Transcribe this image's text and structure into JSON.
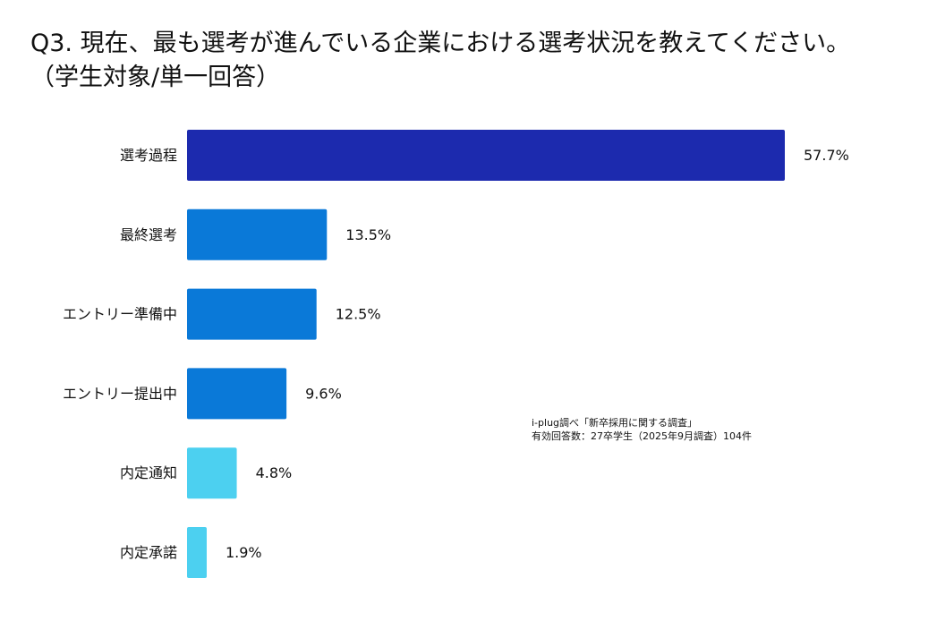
{
  "title_line1": "Q3. 現在、最も選考が進んでいる企業における選考状況を教えてください。",
  "title_line2": "（学生対象/単一回答）",
  "source_line1": "i-plug調べ「新卒採用に関する調査」",
  "source_line2": "有効回答数：27卒学生（2025年9月調査）104件",
  "chart_data": {
    "type": "bar",
    "orientation": "horizontal",
    "title": "Q3. 現在、最も選考が進んでいる企業における選考状況を教えてください。（学生対象/単一回答）",
    "categories": [
      "選考過程",
      "最終選考",
      "エントリー準備中",
      "エントリー提出中",
      "内定通知",
      "内定承諾"
    ],
    "values": [
      57.7,
      13.5,
      12.5,
      9.6,
      4.8,
      1.9
    ],
    "labels": [
      "57.7%",
      "13.5%",
      "12.5%",
      "9.6%",
      "4.8%",
      "1.9%"
    ],
    "colors": [
      "#1c2aae",
      "#0a79d8",
      "#0a79d8",
      "#0a79d8",
      "#4cd0f0",
      "#4cd0f0"
    ],
    "unit": "%",
    "xlim": [
      0,
      57.7
    ],
    "grid": false,
    "legend": "none"
  }
}
